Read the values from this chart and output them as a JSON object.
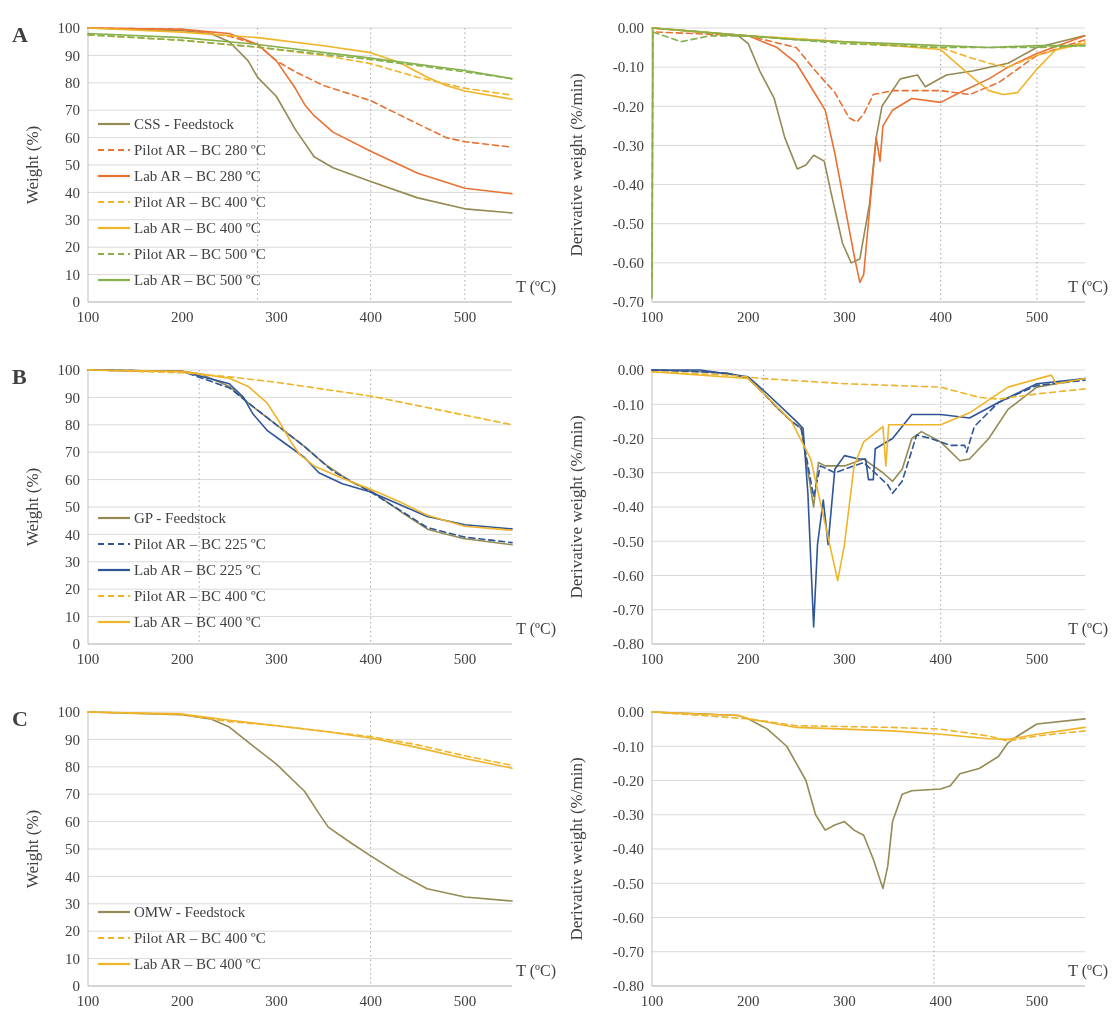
{
  "chart_data": [
    {
      "type": "line",
      "annotations": [
        "A"
      ],
      "xlabel": "T (ºC)",
      "ylabel": "Weight (%)",
      "xlim": [
        100,
        550
      ],
      "xticks": [
        100,
        200,
        300,
        400,
        500
      ],
      "ylim": [
        0,
        100
      ],
      "yticks": [
        0,
        10,
        20,
        30,
        40,
        50,
        60,
        70,
        80,
        90,
        100
      ],
      "grid": "y",
      "legend": "bottom left",
      "ref_lines": [
        {
          "axis": "x",
          "value": 280,
          "color": "#a6a6a6",
          "line_style": "dotted"
        },
        {
          "axis": "x",
          "value": 400,
          "color": "#a6a6a6",
          "line_style": "dotted"
        },
        {
          "axis": "x",
          "value": 500,
          "color": "#a6a6a6",
          "line_style": "dotted"
        }
      ],
      "series": [
        {
          "name": "CSS - Feedstock",
          "color": "#948a54",
          "line_style": "solid",
          "x": [
            100,
            200,
            230,
            250,
            270,
            280,
            300,
            320,
            340,
            360,
            400,
            450,
            500,
            550
          ],
          "values": [
            100,
            99,
            98,
            95,
            88,
            82,
            75,
            63,
            53,
            49,
            44,
            38,
            34,
            32.5
          ]
        },
        {
          "name": "Pilot AR – BC 280 ºC",
          "color": "#e97132",
          "line_style": "dashed",
          "x": [
            100,
            200,
            250,
            280,
            300,
            320,
            350,
            400,
            450,
            480,
            500,
            550
          ],
          "values": [
            100,
            99.5,
            97,
            94,
            88,
            84,
            79,
            73.5,
            65,
            60,
            58.5,
            56.5
          ]
        },
        {
          "name": "Lab AR – BC 280 ºC",
          "color": "#e97132",
          "line_style": "solid",
          "x": [
            100,
            200,
            250,
            280,
            300,
            320,
            330,
            340,
            360,
            400,
            450,
            500,
            550
          ],
          "values": [
            100,
            99.5,
            98,
            94,
            88,
            78,
            72,
            68,
            62,
            55,
            47,
            41.5,
            39.5
          ]
        },
        {
          "name": "Pilot AR – BC 400 ºC",
          "color": "#f0b429",
          "line_style": "dashed",
          "x": [
            100,
            200,
            280,
            350,
            400,
            450,
            500,
            550
          ],
          "values": [
            97.5,
            95.5,
            93,
            90,
            87,
            82,
            78,
            75.5
          ]
        },
        {
          "name": "Lab AR – BC 400 ºC",
          "color": "#f0b429",
          "line_style": "solid",
          "x": [
            100,
            200,
            280,
            350,
            400,
            430,
            460,
            480,
            500,
            550
          ],
          "values": [
            100,
            98.5,
            96.5,
            93.5,
            91,
            87.5,
            82,
            79,
            77,
            74
          ]
        },
        {
          "name": "Pilot AR – BC 500 ºC",
          "color": "#86b04b",
          "line_style": "dashed",
          "x": [
            100,
            200,
            280,
            400,
            500,
            550
          ],
          "values": [
            97.5,
            95.5,
            93,
            88.5,
            84,
            81.5
          ]
        },
        {
          "name": "Lab AR – BC 500 ºC",
          "color": "#86b04b",
          "line_style": "solid",
          "x": [
            100,
            200,
            280,
            400,
            500,
            550
          ],
          "values": [
            98,
            96.5,
            94,
            89,
            84.5,
            81.5
          ]
        }
      ]
    },
    {
      "type": "line",
      "xlabel": "T (ºC)",
      "ylabel": "Derivative weight (%/min)",
      "xlim": [
        100,
        550
      ],
      "xticks": [
        100,
        200,
        300,
        400,
        500
      ],
      "ylim": [
        -0.7,
        0
      ],
      "yticks": [
        {
          "value": -0.7,
          "label": "-0.70"
        },
        {
          "value": -0.6,
          "label": "-0.60"
        },
        {
          "value": -0.5,
          "label": "-0.50"
        },
        {
          "value": -0.4,
          "label": "-0.40"
        },
        {
          "value": -0.3,
          "label": "-0.30"
        },
        {
          "value": -0.2,
          "label": "-0.20"
        },
        {
          "value": -0.1,
          "label": "-0.10"
        },
        {
          "value": 0,
          "label": "0.00"
        }
      ],
      "grid": "y",
      "ref_lines": [
        {
          "axis": "x",
          "value": 280,
          "color": "#a6a6a6",
          "line_style": "dotted"
        },
        {
          "axis": "x",
          "value": 400,
          "color": "#a6a6a6",
          "line_style": "dotted"
        },
        {
          "axis": "x",
          "value": 500,
          "color": "#a6a6a6",
          "line_style": "dotted"
        }
      ],
      "series": [
        {
          "color": "#948a54",
          "line_style": "solid",
          "x": [
            100,
            150,
            190,
            200,
            212,
            227,
            238,
            251,
            260,
            268,
            279,
            286,
            298,
            307,
            316,
            326,
            333,
            339,
            358,
            376,
            384,
            406,
            433,
            470,
            500,
            549
          ],
          "values": [
            0,
            -0.01,
            -0.02,
            -0.04,
            -0.11,
            -0.18,
            -0.28,
            -0.36,
            -0.35,
            -0.325,
            -0.34,
            -0.42,
            -0.55,
            -0.6,
            -0.59,
            -0.45,
            -0.28,
            -0.2,
            -0.13,
            -0.12,
            -0.15,
            -0.12,
            -0.11,
            -0.09,
            -0.05,
            -0.02
          ]
        },
        {
          "color": "#e97132",
          "line_style": "dashed",
          "x": [
            100,
            101,
            200,
            250,
            270,
            290,
            305,
            313,
            320,
            330,
            350,
            400,
            430,
            460,
            500,
            550
          ],
          "values": [
            -0.64,
            -0.01,
            -0.02,
            -0.05,
            -0.11,
            -0.165,
            -0.23,
            -0.24,
            -0.22,
            -0.17,
            -0.16,
            -0.16,
            -0.17,
            -0.14,
            -0.07,
            -0.03
          ]
        },
        {
          "color": "#e97132",
          "line_style": "solid",
          "x": [
            100,
            200,
            230,
            250,
            270,
            280,
            290,
            300,
            310,
            316,
            320,
            327,
            333,
            337,
            340,
            350,
            370,
            400,
            420,
            450,
            470,
            500,
            550
          ],
          "values": [
            0,
            -0.02,
            -0.05,
            -0.09,
            -0.17,
            -0.21,
            -0.32,
            -0.45,
            -0.58,
            -0.65,
            -0.63,
            -0.44,
            -0.28,
            -0.34,
            -0.25,
            -0.21,
            -0.18,
            -0.19,
            -0.165,
            -0.13,
            -0.1,
            -0.065,
            -0.02
          ]
        },
        {
          "color": "#f0b429",
          "line_style": "dashed",
          "x": [
            100,
            200,
            300,
            400,
            430,
            450,
            470,
            500,
            550
          ],
          "values": [
            0,
            -0.02,
            -0.035,
            -0.05,
            -0.075,
            -0.09,
            -0.1,
            -0.07,
            -0.035
          ]
        },
        {
          "color": "#f0b429",
          "line_style": "solid",
          "x": [
            100,
            200,
            300,
            400,
            430,
            450,
            465,
            480,
            500,
            520,
            550
          ],
          "values": [
            0,
            -0.02,
            -0.035,
            -0.055,
            -0.12,
            -0.16,
            -0.17,
            -0.165,
            -0.105,
            -0.055,
            -0.04
          ]
        },
        {
          "color": "#86b04b",
          "line_style": "dashed",
          "x": [
            101,
            130,
            160,
            200,
            300,
            400,
            500,
            550
          ],
          "values": [
            -0.01,
            -0.035,
            -0.02,
            -0.02,
            -0.04,
            -0.05,
            -0.05,
            -0.045
          ]
        },
        {
          "color": "#86b04b",
          "line_style": "solid",
          "x": [
            100,
            101,
            150,
            200,
            250,
            300,
            350,
            400,
            450,
            500,
            550
          ],
          "values": [
            -0.69,
            0,
            -0.01,
            -0.02,
            -0.03,
            -0.035,
            -0.04,
            -0.045,
            -0.05,
            -0.045,
            -0.045
          ]
        }
      ]
    },
    {
      "type": "line",
      "annotations": [
        "B"
      ],
      "xlabel": "T (ºC)",
      "ylabel": "Weight (%)",
      "xlim": [
        100,
        550
      ],
      "xticks": [
        100,
        200,
        300,
        400,
        500
      ],
      "ylim": [
        0,
        100
      ],
      "yticks": [
        0,
        10,
        20,
        30,
        40,
        50,
        60,
        70,
        80,
        90,
        100
      ],
      "grid": "y",
      "legend": "bottom left",
      "ref_lines": [
        {
          "axis": "x",
          "value": 218,
          "color": "#a6a6a6",
          "line_style": "dotted"
        },
        {
          "axis": "x",
          "value": 400,
          "color": "#a6a6a6",
          "line_style": "dotted"
        }
      ],
      "series": [
        {
          "name": "GP - Feedstock",
          "color": "#948a54",
          "line_style": "solid",
          "x": [
            100,
            200,
            220,
            250,
            270,
            300,
            330,
            350,
            380,
            400,
            435,
            461,
            498,
            550
          ],
          "values": [
            100,
            99.5,
            98.5,
            94,
            88,
            80,
            72,
            66,
            59,
            56,
            47.6,
            41.8,
            38.5,
            36.2
          ]
        },
        {
          "name": "Pilot AR – BC 225 ºC",
          "color": "#2e5597",
          "line_style": "dashed",
          "x": [
            100,
            200,
            250,
            270,
            300,
            330,
            360,
            400,
            435,
            460,
            500,
            550
          ],
          "values": [
            100,
            99.5,
            93.5,
            88,
            80,
            72,
            63,
            55.5,
            48,
            42.5,
            39,
            37
          ]
        },
        {
          "name": "Lab AR – BC 225 ºC",
          "color": "#2e5597",
          "line_style": "solid",
          "x": [
            100,
            200,
            250,
            265,
            275,
            290,
            310,
            330,
            345,
            370,
            400,
            430,
            460,
            500,
            550
          ],
          "values": [
            100,
            99.5,
            95,
            90,
            84,
            78,
            73,
            68,
            62.5,
            58.5,
            55.5,
            51,
            46.5,
            43.5,
            42
          ]
        },
        {
          "name": "Pilot AR – BC 400 ºC",
          "color": "#f0b429",
          "line_style": "dashed",
          "x": [
            100,
            200,
            250,
            300,
            350,
            400,
            450,
            500,
            550
          ],
          "values": [
            100,
            99,
            97.5,
            95.5,
            93,
            90.5,
            87,
            83.5,
            80
          ]
        },
        {
          "name": "Lab AR – BC 400 ºC",
          "color": "#f0b429",
          "line_style": "solid",
          "x": [
            100,
            200,
            250,
            270,
            290,
            305,
            315,
            325,
            340,
            370,
            400,
            430,
            460,
            500,
            550
          ],
          "values": [
            100,
            99.5,
            97,
            94,
            88,
            80,
            74,
            69,
            65,
            60.5,
            56.5,
            52,
            47,
            43,
            41.5
          ]
        }
      ]
    },
    {
      "type": "line",
      "xlabel": "T (ºC)",
      "ylabel": "Derivative weight (%/min)",
      "xlim": [
        100,
        550
      ],
      "xticks": [
        100,
        200,
        300,
        400,
        500
      ],
      "ylim": [
        -0.8,
        0
      ],
      "yticks": [
        {
          "value": -0.8,
          "label": "-0.80"
        },
        {
          "value": -0.7,
          "label": "-0.70"
        },
        {
          "value": -0.6,
          "label": "-0.60"
        },
        {
          "value": -0.5,
          "label": "-0.50"
        },
        {
          "value": -0.4,
          "label": "-0.40"
        },
        {
          "value": -0.3,
          "label": "-0.30"
        },
        {
          "value": -0.2,
          "label": "-0.20"
        },
        {
          "value": -0.1,
          "label": "-0.10"
        },
        {
          "value": 0,
          "label": "0.00"
        }
      ],
      "grid": "y",
      "ref_lines": [
        {
          "axis": "x",
          "value": 216,
          "color": "#a6a6a6",
          "line_style": "dotted"
        },
        {
          "axis": "x",
          "value": 400,
          "color": "#a6a6a6",
          "line_style": "dotted"
        }
      ],
      "series": [
        {
          "color": "#948a54",
          "line_style": "solid",
          "x": [
            100,
            150,
            180,
            200,
            215,
            230,
            245,
            255,
            268,
            273,
            280,
            300,
            320,
            340,
            350,
            360,
            370,
            380,
            400,
            420,
            430,
            450,
            470,
            500,
            550
          ],
          "values": [
            0,
            -0.005,
            -0.01,
            -0.025,
            -0.065,
            -0.11,
            -0.15,
            -0.17,
            -0.4,
            -0.27,
            -0.28,
            -0.28,
            -0.26,
            -0.3,
            -0.325,
            -0.29,
            -0.2,
            -0.18,
            -0.21,
            -0.265,
            -0.26,
            -0.2,
            -0.115,
            -0.05,
            -0.025
          ]
        },
        {
          "color": "#2e5597",
          "line_style": "dashed",
          "x": [
            100,
            150,
            180,
            200,
            215,
            230,
            245,
            255,
            268,
            275,
            290,
            320,
            345,
            350,
            360,
            375,
            390,
            410,
            425,
            427,
            435,
            460,
            500,
            550
          ],
          "values": [
            0,
            -0.005,
            -0.01,
            -0.025,
            -0.065,
            -0.11,
            -0.15,
            -0.17,
            -0.37,
            -0.28,
            -0.3,
            -0.27,
            -0.335,
            -0.36,
            -0.325,
            -0.19,
            -0.2,
            -0.22,
            -0.22,
            -0.24,
            -0.165,
            -0.095,
            -0.045,
            -0.03
          ]
        },
        {
          "color": "#2e5597",
          "line_style": "solid",
          "x": [
            100,
            150,
            200,
            220,
            250,
            257,
            262,
            268,
            272,
            278,
            283,
            290,
            300,
            315,
            322,
            325,
            330,
            332,
            350,
            370,
            400,
            430,
            460,
            500,
            550
          ],
          "values": [
            0,
            0,
            -0.02,
            -0.07,
            -0.15,
            -0.17,
            -0.36,
            -0.75,
            -0.51,
            -0.38,
            -0.51,
            -0.29,
            -0.25,
            -0.26,
            -0.26,
            -0.32,
            -0.32,
            -0.23,
            -0.2,
            -0.13,
            -0.13,
            -0.14,
            -0.095,
            -0.04,
            -0.025
          ]
        },
        {
          "color": "#f0b429",
          "line_style": "dashed",
          "x": [
            100,
            180,
            215,
            300,
            350,
            400,
            440,
            460,
            500,
            550
          ],
          "values": [
            -0.005,
            -0.015,
            -0.025,
            -0.04,
            -0.045,
            -0.05,
            -0.08,
            -0.085,
            -0.07,
            -0.055
          ]
        },
        {
          "color": "#f0b429",
          "line_style": "solid",
          "x": [
            100,
            200,
            215,
            245,
            265,
            280,
            293,
            300,
            310,
            320,
            340,
            343,
            346,
            370,
            400,
            430,
            470,
            515,
            520,
            550
          ],
          "values": [
            -0.005,
            -0.025,
            -0.065,
            -0.15,
            -0.26,
            -0.45,
            -0.615,
            -0.51,
            -0.28,
            -0.21,
            -0.165,
            -0.28,
            -0.16,
            -0.16,
            -0.16,
            -0.125,
            -0.05,
            -0.015,
            -0.04,
            -0.025
          ]
        }
      ]
    },
    {
      "type": "line",
      "annotations": [
        "C"
      ],
      "xlabel": "T (ºC)",
      "ylabel": "Weight (%)",
      "xlim": [
        100,
        550
      ],
      "xticks": [
        100,
        200,
        300,
        400,
        500
      ],
      "ylim": [
        0,
        100
      ],
      "yticks": [
        0,
        10,
        20,
        30,
        40,
        50,
        60,
        70,
        80,
        90,
        100
      ],
      "grid": "y",
      "legend": "bottom left",
      "ref_lines": [
        {
          "axis": "x",
          "value": 400,
          "color": "#a6a6a6",
          "line_style": "dotted"
        }
      ],
      "series": [
        {
          "name": "OMW - Feedstock",
          "color": "#948a54",
          "line_style": "solid",
          "x": [
            100,
            200,
            230,
            250,
            270,
            300,
            330,
            345,
            355,
            380,
            400,
            430,
            460,
            500,
            550
          ],
          "values": [
            100,
            99,
            97.5,
            94.5,
            89,
            81,
            71,
            63,
            58,
            52,
            47.5,
            41,
            35.5,
            32.5,
            31
          ]
        },
        {
          "name": "Pilot AR – BC 400 ºC",
          "color": "#f0b429",
          "line_style": "dashed",
          "x": [
            100,
            200,
            250,
            300,
            350,
            400,
            450,
            500,
            550
          ],
          "values": [
            100,
            99,
            96.5,
            95,
            93,
            91,
            88,
            84,
            80.5
          ]
        },
        {
          "name": "Lab AR – BC 400 ºC",
          "color": "#f0b429",
          "line_style": "solid",
          "x": [
            100,
            200,
            250,
            300,
            350,
            400,
            450,
            500,
            550
          ],
          "values": [
            100,
            99.3,
            97,
            95,
            93,
            90.5,
            87,
            83,
            79.5
          ]
        }
      ]
    },
    {
      "type": "line",
      "xlabel": "T (ºC)",
      "ylabel": "Derivative weight (%/min)",
      "xlim": [
        100,
        550
      ],
      "xticks": [
        100,
        200,
        300,
        400,
        500
      ],
      "ylim": [
        -0.8,
        0
      ],
      "yticks": [
        {
          "value": -0.8,
          "label": "-0.80"
        },
        {
          "value": -0.7,
          "label": "-0.70"
        },
        {
          "value": -0.6,
          "label": "-0.60"
        },
        {
          "value": -0.5,
          "label": "-0.50"
        },
        {
          "value": -0.4,
          "label": "-0.40"
        },
        {
          "value": -0.3,
          "label": "-0.30"
        },
        {
          "value": -0.2,
          "label": "-0.20"
        },
        {
          "value": -0.1,
          "label": "-0.10"
        },
        {
          "value": 0,
          "label": "0.00"
        }
      ],
      "grid": "y",
      "ref_lines": [
        {
          "axis": "x",
          "value": 393,
          "color": "#a6a6a6",
          "line_style": "dotted"
        }
      ],
      "series": [
        {
          "color": "#948a54",
          "line_style": "solid",
          "x": [
            100,
            190,
            200,
            220,
            240,
            260,
            270,
            280,
            290,
            300,
            310,
            320,
            330,
            340,
            345,
            350,
            360,
            370,
            400,
            410,
            420,
            440,
            460,
            470,
            480,
            500,
            550
          ],
          "values": [
            0,
            -0.01,
            -0.02,
            -0.05,
            -0.1,
            -0.2,
            -0.3,
            -0.345,
            -0.33,
            -0.32,
            -0.345,
            -0.36,
            -0.43,
            -0.515,
            -0.45,
            -0.32,
            -0.24,
            -0.23,
            -0.225,
            -0.215,
            -0.18,
            -0.165,
            -0.13,
            -0.09,
            -0.07,
            -0.035,
            -0.02
          ]
        },
        {
          "color": "#f0b429",
          "line_style": "dashed",
          "x": [
            100,
            150,
            200,
            250,
            350,
            400,
            450,
            470,
            500,
            550
          ],
          "values": [
            0,
            -0.01,
            -0.02,
            -0.04,
            -0.045,
            -0.05,
            -0.07,
            -0.085,
            -0.07,
            -0.055
          ]
        },
        {
          "color": "#f0b429",
          "line_style": "solid",
          "x": [
            100,
            190,
            200,
            250,
            300,
            350,
            400,
            450,
            470,
            500,
            550
          ],
          "values": [
            0,
            -0.01,
            -0.02,
            -0.045,
            -0.05,
            -0.055,
            -0.065,
            -0.078,
            -0.08,
            -0.065,
            -0.045
          ]
        }
      ]
    }
  ]
}
